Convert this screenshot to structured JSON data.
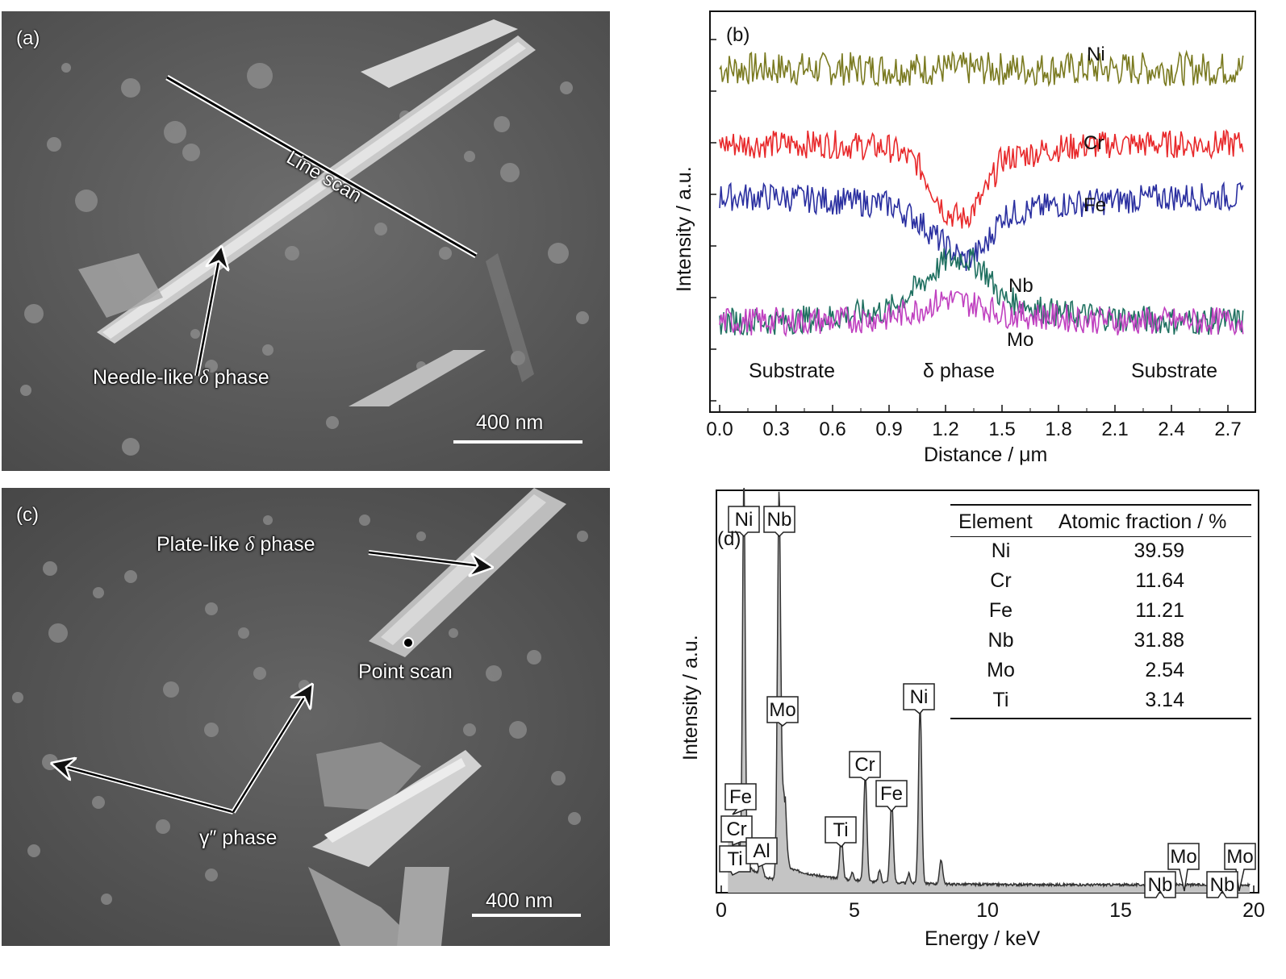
{
  "panel_a": {
    "label": "(a)",
    "line_scan_label": "Line scan",
    "phase_label": "Needle-like",
    "phase_symbol": "δ",
    "phase_suffix": "phase",
    "scale_label": "400 nm"
  },
  "panel_b": {
    "label": "(b)",
    "ylabel": "Intensity / a.u.",
    "xlabel": "Distance / μm",
    "series_labels": [
      "Ni",
      "Cr",
      "Fe",
      "Nb",
      "Mo"
    ],
    "region_labels": [
      "Substrate",
      "δ phase",
      "Substrate"
    ],
    "colors": {
      "Ni": "#7a7a20",
      "Cr": "#e8282a",
      "Fe": "#2a2fa0",
      "Nb": "#1f7060",
      "Mo": "#c040c0"
    }
  },
  "panel_c": {
    "label": "(c)",
    "plate_label": "Plate-like",
    "plate_symbol": "δ",
    "plate_suffix": "phase",
    "point_scan_label": "Point scan",
    "gamma_label": "γ″ phase",
    "scale_label": "400 nm"
  },
  "panel_d": {
    "label": "(d)",
    "ylabel": "Intensity / a.u.",
    "xlabel": "Energy / keV",
    "peak_labels": [
      "Ni",
      "Nb",
      "Mo",
      "Ni",
      "Cr",
      "Fe",
      "Ti",
      "Fe",
      "Cr",
      "Ti",
      "Al",
      "Mo",
      "Nb",
      "Mo",
      "Nb"
    ],
    "table": {
      "headers": [
        "Element",
        "Atomic fraction / %"
      ],
      "rows": [
        [
          "Ni",
          "39.59"
        ],
        [
          "Cr",
          "11.64"
        ],
        [
          "Fe",
          "11.21"
        ],
        [
          "Nb",
          "31.88"
        ],
        [
          "Mo",
          "2.54"
        ],
        [
          "Ti",
          "3.14"
        ]
      ]
    }
  },
  "chart_data": [
    {
      "type": "line",
      "title": "",
      "xlabel": "Distance / μm",
      "ylabel": "Intensity / a.u.",
      "xlim": [
        0.0,
        2.8
      ],
      "xticks": [
        0.0,
        0.3,
        0.6,
        0.9,
        1.2,
        1.5,
        1.8,
        2.1,
        2.4,
        2.7
      ],
      "xtick_labels": [
        "0.0",
        "0.3",
        "0.6",
        "0.9",
        "1.2",
        "1.5",
        "1.8",
        "2.1",
        "2.4",
        "2.7"
      ],
      "ylim": [
        0,
        10
      ],
      "x": [
        0.0,
        0.3,
        0.6,
        0.9,
        1.05,
        1.2,
        1.3,
        1.4,
        1.5,
        1.8,
        2.1,
        2.4,
        2.78
      ],
      "series": [
        {
          "name": "Ni",
          "values": [
            8.9,
            8.9,
            8.9,
            8.9,
            8.9,
            8.9,
            8.9,
            8.9,
            8.9,
            8.9,
            8.9,
            8.9,
            8.9
          ]
        },
        {
          "name": "Cr",
          "values": [
            6.9,
            6.9,
            6.9,
            6.8,
            6.4,
            5.1,
            4.9,
            5.5,
            6.5,
            6.8,
            6.9,
            6.9,
            6.9
          ]
        },
        {
          "name": "Fe",
          "values": [
            5.5,
            5.5,
            5.4,
            5.3,
            4.9,
            4.2,
            3.8,
            4.1,
            5.0,
            5.3,
            5.4,
            5.5,
            5.5
          ]
        },
        {
          "name": "Nb",
          "values": [
            2.2,
            2.2,
            2.3,
            2.5,
            3.1,
            3.8,
            3.9,
            3.6,
            2.8,
            2.4,
            2.3,
            2.2,
            2.2
          ]
        },
        {
          "name": "Mo",
          "values": [
            2.2,
            2.2,
            2.2,
            2.3,
            2.5,
            2.8,
            2.7,
            2.6,
            2.4,
            2.3,
            2.2,
            2.2,
            2.2
          ]
        }
      ],
      "annotations": [
        "Substrate",
        "δ phase",
        "Substrate"
      ],
      "grid": false
    },
    {
      "type": "line",
      "title": "",
      "xlabel": "Energy / keV",
      "ylabel": "Intensity / a.u.",
      "xlim": [
        0,
        20
      ],
      "xticks": [
        0,
        5,
        10,
        15,
        20
      ],
      "ylim": [
        0,
        100
      ],
      "series": [
        {
          "name": "",
          "x": [
            0.28,
            0.45,
            0.7,
            0.85,
            1.0,
            1.2,
            1.5,
            1.75,
            2.0,
            2.17,
            2.35,
            2.6,
            3.0,
            4.0,
            4.4,
            4.51,
            4.7,
            5.2,
            5.41,
            5.7,
            6.2,
            6.4,
            6.8,
            7.2,
            7.47,
            7.8,
            8.26,
            8.5,
            9,
            10,
            12,
            15,
            17,
            19.5,
            20
          ],
          "values": [
            4,
            6,
            12,
            15,
            97,
            10,
            9,
            7,
            8,
            97,
            28,
            10,
            7,
            5,
            4,
            14,
            4,
            4,
            30,
            4,
            4,
            24,
            4,
            4,
            48,
            4,
            8,
            3,
            2,
            1.5,
            1,
            1,
            0.8,
            0.5,
            0.5
          ]
        }
      ],
      "peak_annotations": [
        {
          "label": "Ni",
          "energy": 0.85
        },
        {
          "label": "Nb",
          "energy": 2.17
        },
        {
          "label": "Mo",
          "energy": 2.29
        },
        {
          "label": "Ni",
          "energy": 7.47
        },
        {
          "label": "Cr",
          "energy": 5.41
        },
        {
          "label": "Fe",
          "energy": 6.4
        },
        {
          "label": "Ti",
          "energy": 4.51
        },
        {
          "label": "Fe",
          "energy": 0.7
        },
        {
          "label": "Cr",
          "energy": 0.57
        },
        {
          "label": "Ti",
          "energy": 0.45
        },
        {
          "label": "Al",
          "energy": 1.49
        },
        {
          "label": "Mo",
          "energy": 17.4
        },
        {
          "label": "Nb",
          "energy": 16.6
        },
        {
          "label": "Mo",
          "energy": 19.6
        },
        {
          "label": "Nb",
          "energy": 18.6
        }
      ],
      "grid": false
    }
  ]
}
